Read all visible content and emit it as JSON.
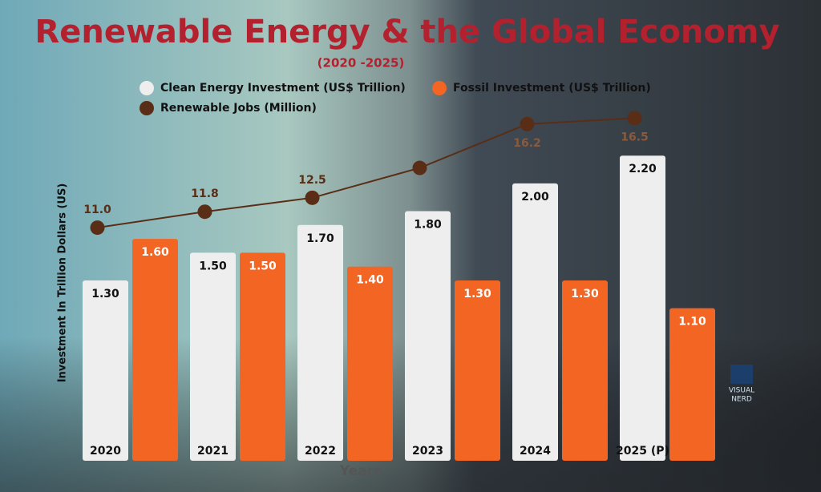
{
  "chart_data": {
    "type": "bar",
    "title": "Renewable Energy & the Global Economy",
    "subtitle": "(2020 -2025)",
    "x_label": "Years",
    "y_label": "Investment In Trillion Dollars (US)",
    "categories": [
      "2020",
      "2021",
      "2022",
      "2023",
      "2024",
      "2025 (P)"
    ],
    "series": [
      {
        "name": "Clean Energy Investment (US$ Trillion)",
        "color": "#eeeeee",
        "type": "bar",
        "values": [
          1.3,
          1.5,
          1.7,
          1.8,
          2.0,
          2.2
        ],
        "value_labels": [
          "1.30",
          "1.50",
          "1.70",
          "1.80",
          "2.00",
          "2.20"
        ]
      },
      {
        "name": "Fossil Investment (US$ Trillion)",
        "color": "#f26522",
        "type": "bar",
        "values": [
          1.6,
          1.5,
          1.4,
          1.3,
          1.3,
          1.1
        ],
        "value_labels": [
          "1.60",
          "1.50",
          "1.40",
          "1.30",
          "1.30",
          "1.10"
        ]
      },
      {
        "name": "Renewable Jobs (Million)",
        "color": "#5a2e16",
        "type": "line",
        "axis": "y2",
        "values": [
          11.0,
          11.8,
          12.5,
          14.0,
          16.2,
          16.5
        ],
        "value_labels": [
          "11.0",
          "11.8",
          "12.5",
          null,
          "16.2",
          "16.5"
        ]
      }
    ],
    "ylim": [
      0,
      2.6
    ],
    "y2lim": [
      -0.7,
      17.4
    ],
    "grid": false,
    "logo": [
      "VISUAL",
      "NERD"
    ]
  }
}
